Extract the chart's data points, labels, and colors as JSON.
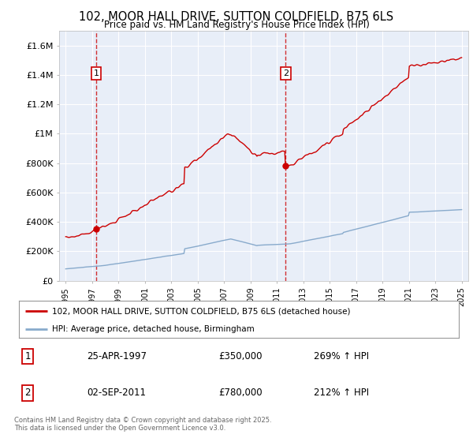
{
  "title": "102, MOOR HALL DRIVE, SUTTON COLDFIELD, B75 6LS",
  "subtitle": "Price paid vs. HM Land Registry's House Price Index (HPI)",
  "xlim": [
    1994.5,
    2025.5
  ],
  "ylim": [
    0,
    1700000
  ],
  "yticks": [
    0,
    200000,
    400000,
    600000,
    800000,
    1000000,
    1200000,
    1400000,
    1600000
  ],
  "ytick_labels": [
    "£0",
    "£200K",
    "£400K",
    "£600K",
    "£800K",
    "£1M",
    "£1.2M",
    "£1.4M",
    "£1.6M"
  ],
  "sale1_x": 1997.32,
  "sale1_y": 350000,
  "sale2_x": 2011.67,
  "sale2_y": 780000,
  "legend_line1": "102, MOOR HALL DRIVE, SUTTON COLDFIELD, B75 6LS (detached house)",
  "legend_line2": "HPI: Average price, detached house, Birmingham",
  "table_rows": [
    [
      "1",
      "25-APR-1997",
      "£350,000",
      "269% ↑ HPI"
    ],
    [
      "2",
      "02-SEP-2011",
      "£780,000",
      "212% ↑ HPI"
    ]
  ],
  "footer": "Contains HM Land Registry data © Crown copyright and database right 2025.\nThis data is licensed under the Open Government Licence v3.0.",
  "plot_bg": "#e8eef8",
  "grid_color": "#ffffff",
  "red_line_color": "#cc0000",
  "blue_line_color": "#88aacc",
  "dashed_color": "#cc0000"
}
